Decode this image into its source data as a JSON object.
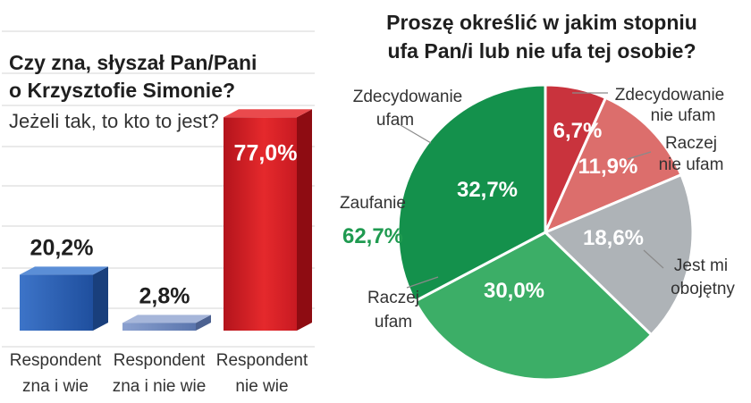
{
  "chart_data": [
    {
      "type": "bar",
      "title": [
        "Czy zna, słyszał Pan/Pani",
        "o Krzysztofie Simonie?"
      ],
      "subtitle": "Jeżeli tak, to kto to jest?",
      "categories": [
        [
          "Respondent",
          "zna i wie"
        ],
        [
          "Respondent",
          "zna i nie wie"
        ],
        [
          "Respondent",
          "nie wie"
        ]
      ],
      "values": [
        20.2,
        2.8,
        77.0
      ],
      "value_labels": [
        "20,2%",
        "2,8%",
        "77,0%"
      ],
      "colors": [
        "#2d5fb0",
        "#6c86bd",
        "#d8262c"
      ],
      "ylim": [
        0,
        80
      ],
      "grid": true
    },
    {
      "type": "pie",
      "title": [
        "Proszę określić w jakim stopniu",
        "ufa Pan/i lub nie ufa tej osobie?"
      ],
      "slices": [
        {
          "label": [
            "Zdecydowanie",
            "nie ufam"
          ],
          "value": 6.7,
          "value_label": "6,7%",
          "color": "#c9333d"
        },
        {
          "label": [
            "Raczej",
            "nie ufam"
          ],
          "value": 11.9,
          "value_label": "11,9%",
          "color": "#dc6e6c"
        },
        {
          "label": [
            "Jest mi",
            "obojętny"
          ],
          "value": 18.6,
          "value_label": "18,6%",
          "color": "#aeb3b7"
        },
        {
          "label": [
            "Raczej",
            "ufam"
          ],
          "value": 30.0,
          "value_label": "30,0%",
          "color": "#3cae67"
        },
        {
          "label": [
            "Zdecydowanie",
            "ufam"
          ],
          "value": 32.7,
          "value_label": "32,7%",
          "color": "#14914c"
        }
      ],
      "group_annotation": {
        "label": "Zaufanie",
        "value_label": "62,7%",
        "color": "#1f9a50"
      }
    }
  ]
}
